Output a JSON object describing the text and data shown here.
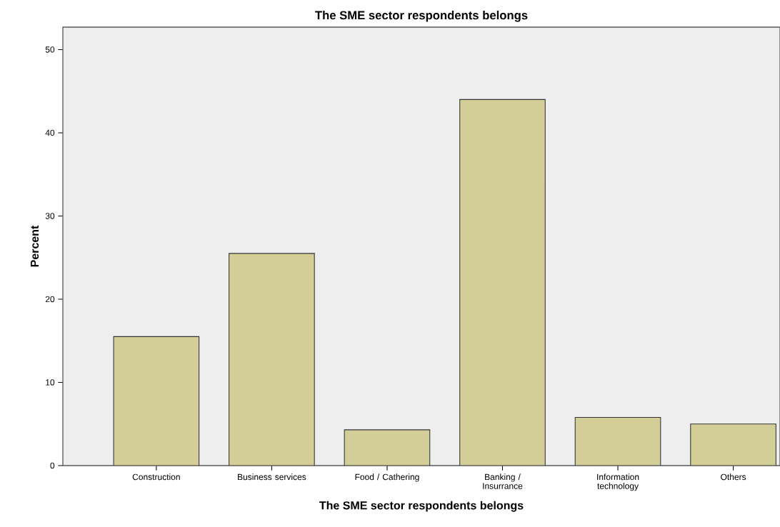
{
  "chart_data": {
    "type": "bar",
    "title": "The SME sector respondents belongs",
    "xlabel": "The SME sector respondents belongs",
    "ylabel": "Percent",
    "categories": [
      "Construction",
      "Business services",
      "Food / Cathering",
      "Banking / Insurrance",
      "Information technology",
      "Others"
    ],
    "values": [
      15.5,
      25.5,
      4.3,
      44.0,
      5.8,
      5.0
    ],
    "color": "#d3ce98",
    "ylim": [
      0,
      52.7
    ],
    "yticks": [
      0,
      10,
      20,
      30,
      40,
      50
    ]
  }
}
